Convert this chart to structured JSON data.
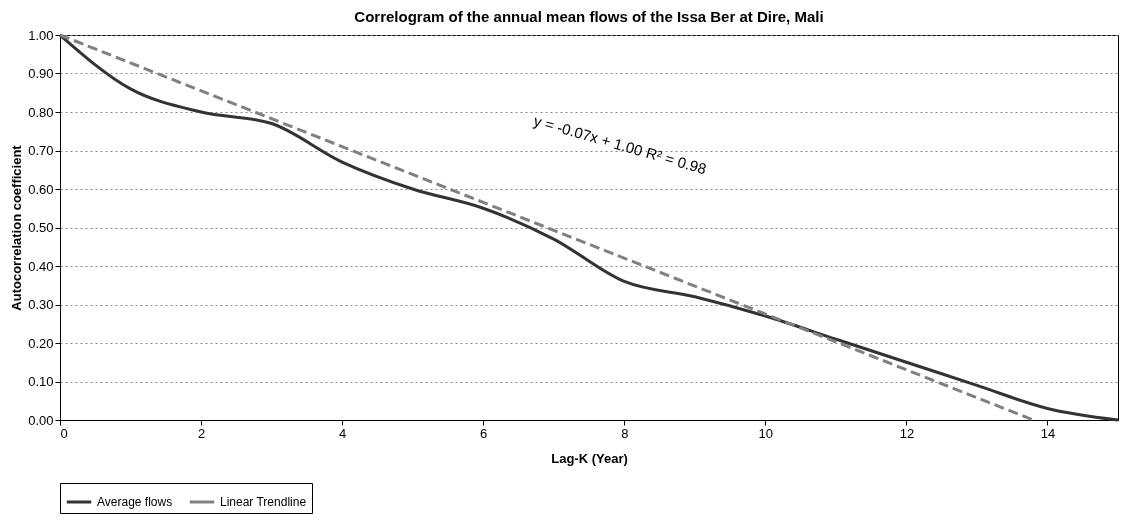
{
  "chart_data": {
    "type": "line",
    "title": "Correlogram of the annual mean flows of the Issa Ber at Dire, Mali",
    "xlabel": "Lag-K (Year)",
    "ylabel": "Autocorrelation coefficient",
    "x": [
      0,
      1,
      2,
      3,
      4,
      5,
      6,
      7,
      8,
      9,
      10,
      11,
      12,
      13,
      14,
      15
    ],
    "series": [
      {
        "name": "Average flows",
        "color": "#333333",
        "line_style": "solid",
        "values": [
          1.0,
          0.86,
          0.8,
          0.77,
          0.67,
          0.6,
          0.55,
          0.47,
          0.36,
          0.32,
          0.27,
          0.21,
          0.15,
          0.09,
          0.03,
          0.0
        ]
      },
      {
        "name": "Linear Trendline",
        "type": "line",
        "color": "#808080",
        "line_style": "dashed",
        "x": [
          0,
          13.8
        ],
        "values": [
          1.0,
          0.0
        ]
      }
    ],
    "annotations": [
      "y = -0.07x + 1.00 R² = 0.98"
    ],
    "xlim": [
      0,
      15
    ],
    "xticks": [
      0,
      2,
      4,
      6,
      8,
      10,
      12,
      14
    ],
    "ylim": [
      0,
      1
    ],
    "yticks": [
      {
        "value": 0,
        "label": "0.00"
      },
      {
        "value": 0.1,
        "label": "0.10"
      },
      {
        "value": 0.2,
        "label": "0.20"
      },
      {
        "value": 0.3,
        "label": "0.30"
      },
      {
        "value": 0.4,
        "label": "0.40"
      },
      {
        "value": 0.5,
        "label": "0.50"
      },
      {
        "value": 0.6,
        "label": "0.60"
      },
      {
        "value": 0.7,
        "label": "0.70"
      },
      {
        "value": 0.8,
        "label": "0.80"
      },
      {
        "value": 0.9,
        "label": "0.90"
      },
      {
        "value": 1.0,
        "label": "1.00"
      }
    ],
    "grid": "y",
    "legend": "bottom",
    "marker": "none"
  }
}
